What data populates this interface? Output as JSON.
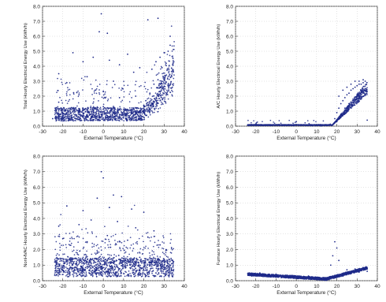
{
  "colors": {
    "marker": "#1f2a8a",
    "axis": "#333333",
    "grid": "#c8c8c8"
  },
  "chart_data": [
    {
      "type": "scatter",
      "panel": "top-left",
      "xlabel": "External Temperature (°C)",
      "ylabel": "Total Hourly Electrical Energy Use (kWh/h)",
      "xlim": [
        -30,
        40
      ],
      "ylim": [
        0,
        8
      ],
      "x_ticks": [
        -30,
        -20,
        -10,
        0,
        10,
        20,
        30,
        40
      ],
      "y_ticks": [
        0.0,
        1.0,
        2.0,
        3.0,
        4.0,
        5.0,
        6.0,
        7.0,
        8.0
      ],
      "grid": true,
      "trend": "base load ~0.3-1.5 kWh/h across -24 to 35 °C with a sharp rise above ~20 °C up to ~5 kWh/h; scattered outliers up to ~7.5 kWh/h",
      "points": [
        [
          -1,
          7.5
        ],
        [
          -2,
          6.3
        ],
        [
          2,
          6.2
        ],
        [
          22,
          7.1
        ],
        [
          27,
          7.2
        ],
        [
          33,
          6.0
        ],
        [
          -22,
          3.5
        ],
        [
          -15,
          4.9
        ],
        [
          -10,
          4.3
        ],
        [
          -5,
          4.6
        ],
        [
          3,
          4.4
        ],
        [
          8,
          4.1
        ],
        [
          12,
          4.8
        ],
        [
          -18,
          2.9
        ],
        [
          -8,
          3.3
        ],
        [
          5,
          3.0
        ],
        [
          15,
          3.6
        ],
        [
          18,
          3.9
        ],
        [
          24,
          3.8
        ],
        [
          26,
          4.3
        ],
        [
          28,
          4.6
        ],
        [
          30,
          4.9
        ],
        [
          31,
          4.2
        ],
        [
          32,
          5.0
        ],
        [
          33,
          5.4
        ],
        [
          29,
          3.9
        ],
        [
          27,
          3.1
        ],
        [
          25,
          2.8
        ],
        [
          23,
          2.2
        ],
        [
          21,
          1.7
        ],
        [
          20,
          1.4
        ],
        [
          -25,
          0.5
        ],
        [
          -20,
          0.8
        ],
        [
          -15,
          1.0
        ],
        [
          -10,
          1.2
        ],
        [
          -5,
          1.1
        ],
        [
          0,
          1.3
        ],
        [
          5,
          1.2
        ],
        [
          10,
          1.1
        ],
        [
          15,
          1.2
        ],
        [
          20,
          1.0
        ],
        [
          -22,
          1.6
        ],
        [
          -12,
          2.1
        ],
        [
          0,
          2.3
        ],
        [
          8,
          1.9
        ],
        [
          16,
          2.0
        ],
        [
          -3,
          0.6
        ],
        [
          6,
          0.5
        ],
        [
          13,
          0.6
        ],
        [
          19,
          0.4
        ]
      ]
    },
    {
      "type": "scatter",
      "panel": "top-right",
      "xlabel": "External Temperature (°C)",
      "ylabel": "A/C Hourly Electrical Energy Use (kWh/h)",
      "xlim": [
        -30,
        40
      ],
      "ylim": [
        0,
        8
      ],
      "x_ticks": [
        -30,
        -20,
        -10,
        0,
        10,
        20,
        30,
        40
      ],
      "y_ticks": [
        0.0,
        1.0,
        2.0,
        3.0,
        4.0,
        5.0,
        6.0,
        7.0,
        8.0
      ],
      "grid": true,
      "trend": "near zero below ~18 °C; rises steeply from ~18 °C to ~3 kWh/h at 35 °C",
      "points": [
        [
          -24,
          0.05
        ],
        [
          -15,
          0.05
        ],
        [
          -5,
          0.05
        ],
        [
          0,
          0.3
        ],
        [
          5,
          0.05
        ],
        [
          10,
          0.05
        ],
        [
          15,
          0.05
        ],
        [
          18,
          0.1
        ],
        [
          19,
          0.5
        ],
        [
          20,
          0.9
        ],
        [
          21,
          1.2
        ],
        [
          22,
          1.5
        ],
        [
          23,
          1.7
        ],
        [
          24,
          1.9
        ],
        [
          25,
          2.1
        ],
        [
          26,
          2.2
        ],
        [
          27,
          2.4
        ],
        [
          28,
          2.5
        ],
        [
          29,
          2.6
        ],
        [
          30,
          2.7
        ],
        [
          31,
          2.8
        ],
        [
          32,
          2.8
        ],
        [
          33,
          2.9
        ],
        [
          34,
          3.0
        ],
        [
          20,
          0.3
        ],
        [
          22,
          0.8
        ],
        [
          24,
          1.2
        ],
        [
          26,
          1.5
        ],
        [
          28,
          1.8
        ],
        [
          30,
          2.1
        ],
        [
          32,
          2.3
        ],
        [
          34,
          2.5
        ],
        [
          21,
          2.0
        ],
        [
          23,
          2.4
        ],
        [
          25,
          2.6
        ],
        [
          27,
          2.8
        ],
        [
          29,
          3.0
        ],
        [
          31,
          3.0
        ],
        [
          33,
          3.1
        ],
        [
          35,
          0.4
        ]
      ]
    },
    {
      "type": "scatter",
      "panel": "bottom-left",
      "xlabel": "External Temperature (°C)",
      "ylabel": "NonHVAC Hourly Electrical Energy Use (kWh/h)",
      "xlim": [
        -30,
        40
      ],
      "ylim": [
        0,
        8
      ],
      "x_ticks": [
        -30,
        -20,
        -10,
        0,
        10,
        20,
        30,
        40
      ],
      "y_ticks": [
        0.0,
        1.0,
        2.0,
        3.0,
        4.0,
        5.0,
        6.0,
        7.0,
        8.0
      ],
      "grid": true,
      "trend": "roughly flat ~0.2-1.5 kWh/h across -24 to 35 °C with scattered outliers up to ~7 kWh/h",
      "points": [
        [
          -1,
          7.0
        ],
        [
          0,
          6.6
        ],
        [
          -3,
          5.3
        ],
        [
          5,
          5.5
        ],
        [
          9,
          5.4
        ],
        [
          -18,
          4.8
        ],
        [
          -10,
          4.5
        ],
        [
          3,
          4.7
        ],
        [
          14,
          4.6
        ],
        [
          20,
          4.4
        ],
        [
          -22,
          3.5
        ],
        [
          -12,
          3.6
        ],
        [
          -6,
          3.9
        ],
        [
          7,
          3.8
        ],
        [
          16,
          3.4
        ],
        [
          25,
          3.2
        ],
        [
          -20,
          2.7
        ],
        [
          -8,
          2.5
        ],
        [
          2,
          2.9
        ],
        [
          12,
          2.6
        ],
        [
          22,
          2.8
        ],
        [
          28,
          2.3
        ],
        [
          -24,
          1.2
        ],
        [
          -16,
          1.4
        ],
        [
          -9,
          1.3
        ],
        [
          -2,
          1.5
        ],
        [
          4,
          1.4
        ],
        [
          11,
          1.3
        ],
        [
          18,
          1.5
        ],
        [
          24,
          1.3
        ],
        [
          30,
          1.2
        ],
        [
          33,
          1.0
        ],
        [
          -23,
          0.4
        ],
        [
          -14,
          0.5
        ],
        [
          -4,
          0.6
        ],
        [
          6,
          0.5
        ],
        [
          15,
          0.4
        ],
        [
          26,
          0.5
        ],
        [
          34,
          0.3
        ],
        [
          31,
          2.0
        ]
      ]
    },
    {
      "type": "scatter",
      "panel": "bottom-right",
      "xlabel": "External Temperature (°C)",
      "ylabel": "Furnace Hourly Electrical Energy Use (kWh/h)",
      "xlim": [
        -30,
        40
      ],
      "ylim": [
        0,
        8
      ],
      "x_ticks": [
        -30,
        -20,
        -10,
        0,
        10,
        20,
        30,
        40
      ],
      "y_ticks": [
        0.0,
        1.0,
        2.0,
        3.0,
        4.0,
        5.0,
        6.0,
        7.0,
        8.0
      ],
      "grid": true,
      "trend": "~0.4 kWh/h at -24 °C decreasing to ~0.1 kWh/h near 15 °C, then rising to ~0.8 kWh/h at 35 °C; a few outliers near 18-20 °C up to ~2.5 kWh/h",
      "points": [
        [
          -24,
          0.45
        ],
        [
          -20,
          0.42
        ],
        [
          -16,
          0.38
        ],
        [
          -12,
          0.35
        ],
        [
          -8,
          0.3
        ],
        [
          -4,
          0.27
        ],
        [
          0,
          0.22
        ],
        [
          4,
          0.18
        ],
        [
          8,
          0.15
        ],
        [
          12,
          0.12
        ],
        [
          15,
          0.12
        ],
        [
          18,
          0.2
        ],
        [
          20,
          0.3
        ],
        [
          22,
          0.4
        ],
        [
          24,
          0.5
        ],
        [
          26,
          0.55
        ],
        [
          28,
          0.6
        ],
        [
          30,
          0.65
        ],
        [
          32,
          0.7
        ],
        [
          34,
          0.8
        ],
        [
          19,
          2.5
        ],
        [
          20,
          2.1
        ],
        [
          18,
          1.6
        ],
        [
          21,
          1.3
        ],
        [
          17,
          1.0
        ],
        [
          -22,
          0.3
        ],
        [
          -14,
          0.25
        ],
        [
          -6,
          0.2
        ],
        [
          2,
          0.15
        ],
        [
          10,
          0.1
        ],
        [
          25,
          0.7
        ],
        [
          29,
          0.75
        ],
        [
          33,
          0.85
        ],
        [
          -18,
          0.5
        ],
        [
          -10,
          0.42
        ],
        [
          6,
          0.3
        ],
        [
          23,
          0.3
        ],
        [
          27,
          0.45
        ],
        [
          31,
          0.55
        ],
        [
          35,
          0.6
        ]
      ]
    }
  ]
}
